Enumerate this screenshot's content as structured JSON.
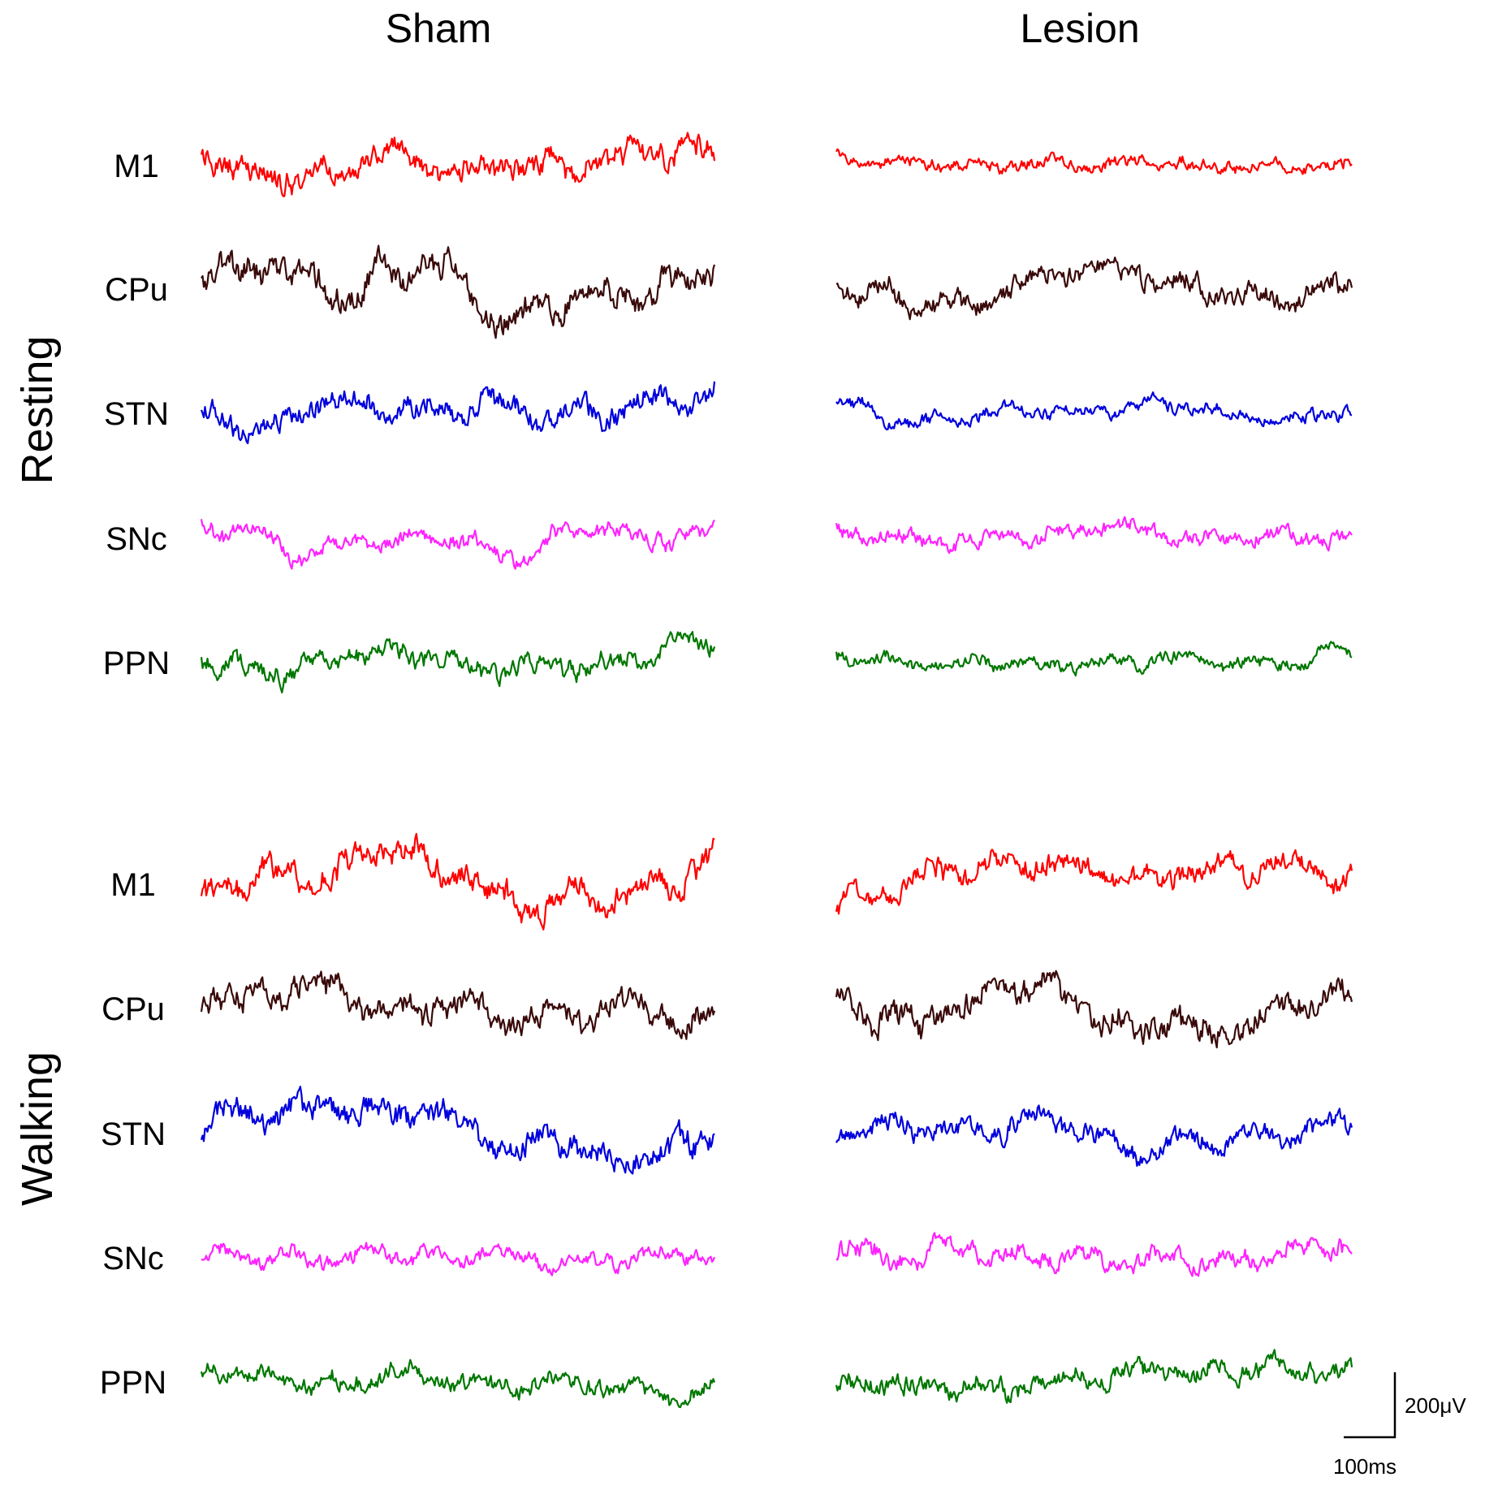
{
  "chart_data": {
    "type": "line",
    "description_kind": "LFP traces",
    "columns": [
      "Sham",
      "Lesion"
    ],
    "states": [
      "Resting",
      "Walking"
    ],
    "regions": [
      "M1",
      "CPu",
      "STN",
      "SNc",
      "PPN"
    ],
    "colors": {
      "M1": "#ff0000",
      "CPu": "#3a0a0a",
      "STN": "#0000dd",
      "SNc": "#ff22ff",
      "PPN": "#007700"
    },
    "scale_bar": {
      "voltage": "200μV",
      "time": "100ms"
    },
    "panels": [
      {
        "state": "Resting",
        "column": "Sham",
        "region": "M1",
        "amp": 48,
        "seed": 11,
        "lf": 0.55,
        "trend": [
          0,
          -0.3,
          0.25,
          -0.35,
          0.15,
          0.55
        ]
      },
      {
        "state": "Resting",
        "column": "Sham",
        "region": "CPu",
        "amp": 55,
        "seed": 12,
        "lf": 0.5,
        "trend": [
          0.2,
          0.3,
          0.35,
          -0.55,
          -0.2,
          0.45
        ]
      },
      {
        "state": "Resting",
        "column": "Sham",
        "region": "STN",
        "amp": 44,
        "seed": 13,
        "lf": 0.45,
        "trend": [
          -0.3,
          0.05,
          0.15,
          -0.2,
          0.2,
          0.55
        ]
      },
      {
        "state": "Resting",
        "column": "Sham",
        "region": "SNc",
        "amp": 34,
        "seed": 14,
        "lf": 0.75,
        "trend": [
          0.3,
          -0.2,
          0.1,
          -0.55,
          0.15,
          0.35
        ]
      },
      {
        "state": "Resting",
        "column": "Sham",
        "region": "PPN",
        "amp": 38,
        "seed": 15,
        "lf": 0.55,
        "trend": [
          0.1,
          -0.2,
          0.3,
          -0.4,
          0.1,
          0.45
        ]
      },
      {
        "state": "Resting",
        "column": "Lesion",
        "region": "M1",
        "amp": 24,
        "seed": 21,
        "lf": 0.2,
        "trend": [
          0.25,
          0,
          0.15,
          0.05,
          -0.1,
          0.1
        ]
      },
      {
        "state": "Resting",
        "column": "Lesion",
        "region": "CPu",
        "amp": 42,
        "seed": 22,
        "lf": 0.7,
        "trend": [
          0.3,
          -0.4,
          0.1,
          0.35,
          -0.3,
          0.3
        ]
      },
      {
        "state": "Resting",
        "column": "Lesion",
        "region": "STN",
        "amp": 26,
        "seed": 23,
        "lf": 0.4,
        "trend": [
          0.3,
          -0.3,
          0.1,
          0.3,
          -0.2,
          0.2
        ]
      },
      {
        "state": "Resting",
        "column": "Lesion",
        "region": "SNc",
        "amp": 30,
        "seed": 24,
        "lf": 0.5,
        "trend": [
          0.3,
          -0.2,
          0.1,
          0.3,
          -0.1,
          0.2
        ]
      },
      {
        "state": "Resting",
        "column": "Lesion",
        "region": "PPN",
        "amp": 26,
        "seed": 25,
        "lf": 0.35,
        "trend": [
          0.3,
          -0.1,
          -0.2,
          0.1,
          -0.1,
          0.4
        ]
      },
      {
        "state": "Walking",
        "column": "Sham",
        "region": "M1",
        "amp": 52,
        "seed": 31,
        "lf": 0.6,
        "trend": [
          -0.3,
          0.3,
          0.5,
          -0.4,
          -0.2,
          0.35
        ]
      },
      {
        "state": "Walking",
        "column": "Sham",
        "region": "CPu",
        "amp": 52,
        "seed": 32,
        "lf": 0.45,
        "trend": [
          0.3,
          0.4,
          -0.1,
          -0.2,
          0.1,
          -0.3
        ]
      },
      {
        "state": "Walking",
        "column": "Sham",
        "region": "STN",
        "amp": 52,
        "seed": 33,
        "lf": 0.7,
        "trend": [
          0.3,
          0.6,
          0.2,
          -0.1,
          -0.5,
          -0.3
        ]
      },
      {
        "state": "Walking",
        "column": "Sham",
        "region": "SNc",
        "amp": 30,
        "seed": 34,
        "lf": 0.35,
        "trend": [
          0.1,
          -0.1,
          0.05,
          0.1,
          -0.1,
          0.1
        ]
      },
      {
        "state": "Walking",
        "column": "Sham",
        "region": "PPN",
        "amp": 34,
        "seed": 35,
        "lf": 0.55,
        "trend": [
          0.4,
          -0.1,
          0.1,
          0,
          -0.2,
          -0.4
        ]
      },
      {
        "state": "Walking",
        "column": "Lesion",
        "region": "M1",
        "amp": 44,
        "seed": 41,
        "lf": 0.3,
        "trend": [
          -0.6,
          0.2,
          0.35,
          0.3,
          0.45,
          0.2
        ]
      },
      {
        "state": "Walking",
        "column": "Lesion",
        "region": "CPu",
        "amp": 52,
        "seed": 42,
        "lf": 0.7,
        "trend": [
          0.2,
          -0.3,
          0.3,
          -0.4,
          -0.2,
          0.2
        ]
      },
      {
        "state": "Walking",
        "column": "Lesion",
        "region": "STN",
        "amp": 40,
        "seed": 43,
        "lf": 0.55,
        "trend": [
          0.2,
          0,
          0.1,
          -0.3,
          -0.1,
          0.3
        ]
      },
      {
        "state": "Walking",
        "column": "Lesion",
        "region": "SNc",
        "amp": 36,
        "seed": 44,
        "lf": 0.5,
        "trend": [
          0.2,
          0,
          -0.2,
          -0.1,
          0.1,
          0.3
        ]
      },
      {
        "state": "Walking",
        "column": "Lesion",
        "region": "PPN",
        "amp": 40,
        "seed": 45,
        "lf": 0.5,
        "trend": [
          0,
          -0.2,
          -0.1,
          0.3,
          0.2,
          0.5
        ]
      }
    ]
  }
}
